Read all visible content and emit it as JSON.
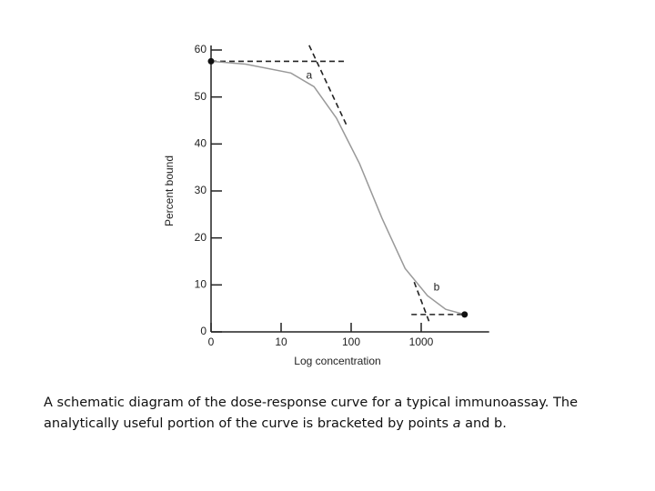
{
  "chart_data": {
    "type": "line",
    "xlabel": "Log concentration",
    "ylabel": "Percent bound",
    "x": [
      0,
      0.49,
      1.14,
      1.47,
      1.79,
      2.12,
      2.44,
      2.77,
      3.09,
      3.35,
      3.62
    ],
    "values": [
      57.6,
      57,
      55.1,
      52.2,
      45.5,
      35.8,
      24.2,
      13.5,
      7.7,
      4.8,
      3.7
    ],
    "color": "#999999",
    "endpoint_markers": true,
    "reference_lines": [
      {
        "x": [
          0,
          1.9
        ],
        "y": [
          57.6,
          57.6
        ]
      },
      {
        "x": [
          1.4,
          1.95
        ],
        "y": [
          61,
          43.5
        ]
      },
      {
        "x": [
          2.9,
          3.12
        ],
        "y": [
          10.6,
          1.9
        ]
      },
      {
        "x": [
          2.86,
          3.62
        ],
        "y": [
          3.7,
          3.7
        ]
      }
    ],
    "annotations": [
      {
        "text": "a",
        "x": 1.4,
        "y": 54.5
      },
      {
        "text": "b",
        "x": 3.22,
        "y": 9.4
      }
    ],
    "xlim": [
      0,
      3.97
    ],
    "ylim": [
      0,
      60
    ],
    "xticks": [
      0,
      {
        "value": 1,
        "label": "10"
      },
      {
        "value": 2,
        "label": "100"
      },
      {
        "value": 3,
        "label": "1000"
      }
    ],
    "yticks": [
      0,
      10,
      20,
      30,
      40,
      50,
      60
    ]
  },
  "caption_runs": [
    {
      "text": "A schematic diagram of the dose-response curve for a typical immunoassay. The analytically useful portion of the curve is bracketed by points ",
      "italic": false
    },
    {
      "text": "a",
      "italic": true
    },
    {
      "text": " and b.",
      "italic": false
    }
  ]
}
